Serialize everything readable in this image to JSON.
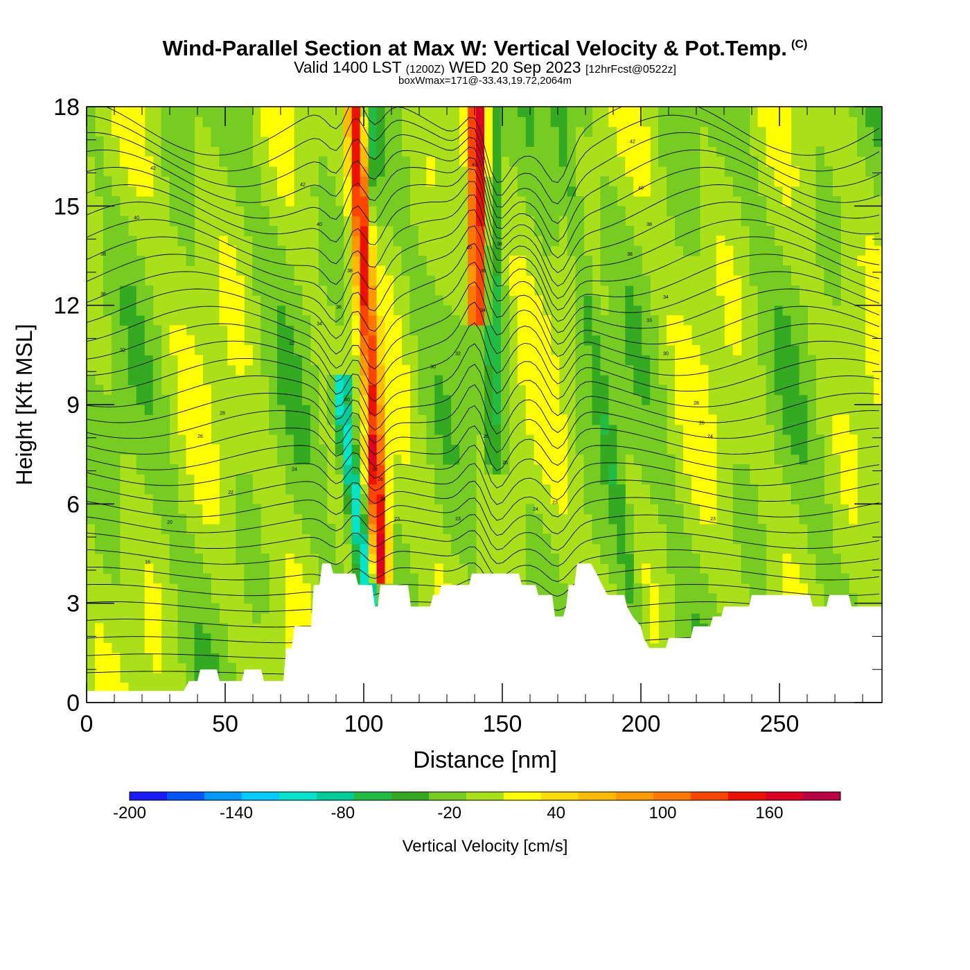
{
  "header": {
    "title_main": "Wind-Parallel Section at Max W: Vertical Velocity & Pot.Temp.",
    "title_copyright": "(C)",
    "valid_prefix": "Valid 1400 LST",
    "valid_utc": "(1200Z)",
    "valid_date": "WED 20 Sep 2023",
    "forecast_info": "[12hrFcst@0522z]",
    "box_wmax": "boxWmax=171@-33.43,19.72,2064m"
  },
  "colorbar": {
    "title": "Vertical Velocity [cm/s]",
    "tick_labels": [
      "-200",
      "-140",
      "-80",
      "-20",
      "40",
      "100",
      "160"
    ],
    "bin_edges": [
      -200,
      -180,
      -160,
      -140,
      -120,
      -100,
      -80,
      -60,
      -40,
      -20,
      0,
      20,
      40,
      60,
      80,
      100,
      120,
      140,
      160,
      180
    ],
    "colors": [
      "#1a1aff",
      "#0055ff",
      "#0099ff",
      "#00ccff",
      "#00e5cc",
      "#00cc99",
      "#22bb44",
      "#33aa22",
      "#77cc22",
      "#aae01a",
      "#ffff00",
      "#ffdd00",
      "#ffbb00",
      "#ff9900",
      "#ff7700",
      "#ff4400",
      "#ee1100",
      "#dd0022",
      "#bb0044"
    ]
  },
  "chart_data": {
    "type": "heatmap",
    "xlabel": "Distance [nm]",
    "ylabel": "Height [Kft MSL]",
    "xlim": [
      0,
      287
    ],
    "ylim": [
      0,
      18
    ],
    "x_ticks": [
      0,
      50,
      100,
      150,
      200,
      250
    ],
    "y_ticks": [
      0,
      3,
      6,
      9,
      12,
      15,
      18
    ],
    "background_value": -15,
    "features": [
      {
        "kind": "updraft",
        "x_top": 97,
        "x_bottom": 106,
        "y_low": 4.5,
        "y_high": 18,
        "value": 150
      },
      {
        "kind": "updraft",
        "x_top": 141,
        "x_bottom": 141,
        "y_low": 12.5,
        "y_high": 18,
        "value": 150
      },
      {
        "kind": "downdraft",
        "x_top": 92,
        "x_bottom": 102,
        "y_low": 3,
        "y_high": 9,
        "value": -130
      },
      {
        "kind": "downdraft",
        "x_top": 102,
        "x_bottom": 102,
        "y_low": 9,
        "y_high": 18,
        "value": -60
      },
      {
        "kind": "downdraft",
        "x_top": 170,
        "x_bottom": 198,
        "y_low": 2.5,
        "y_high": 18,
        "value": -50
      },
      {
        "kind": "downdraft",
        "x_top": 147,
        "x_bottom": 147,
        "y_low": 8,
        "y_high": 18,
        "value": -60
      }
    ],
    "contour_labels": [
      {
        "x": 24,
        "y": 16.1,
        "text": "42"
      },
      {
        "x": 78,
        "y": 15.6,
        "text": "42"
      },
      {
        "x": 18,
        "y": 14.6,
        "text": "40"
      },
      {
        "x": 84,
        "y": 14.4,
        "text": "40"
      },
      {
        "x": 6,
        "y": 13.5,
        "text": "38"
      },
      {
        "x": 6,
        "y": 12.3,
        "text": "36"
      },
      {
        "x": 13,
        "y": 10.6,
        "text": "32"
      },
      {
        "x": 74,
        "y": 10.8,
        "text": "32"
      },
      {
        "x": 49,
        "y": 8.7,
        "text": "28"
      },
      {
        "x": 41,
        "y": 8.0,
        "text": "26"
      },
      {
        "x": 75,
        "y": 7.0,
        "text": "24"
      },
      {
        "x": 52,
        "y": 6.3,
        "text": "22"
      },
      {
        "x": 30,
        "y": 5.4,
        "text": "20"
      },
      {
        "x": 22,
        "y": 4.2,
        "text": "16"
      },
      {
        "x": 95,
        "y": 13.0,
        "text": "38"
      },
      {
        "x": 91,
        "y": 11.9,
        "text": "36"
      },
      {
        "x": 84,
        "y": 11.4,
        "text": "34"
      },
      {
        "x": 94,
        "y": 9.1,
        "text": "30"
      },
      {
        "x": 104,
        "y": 7.0,
        "text": "28"
      },
      {
        "x": 106,
        "y": 6.7,
        "text": "26"
      },
      {
        "x": 107,
        "y": 6.1,
        "text": "24"
      },
      {
        "x": 112,
        "y": 5.5,
        "text": "23"
      },
      {
        "x": 134,
        "y": 5.5,
        "text": "23"
      },
      {
        "x": 125,
        "y": 10.1,
        "text": "30"
      },
      {
        "x": 134,
        "y": 10.5,
        "text": "32"
      },
      {
        "x": 140,
        "y": 16.2,
        "text": "42"
      },
      {
        "x": 138,
        "y": 13.7,
        "text": "40"
      },
      {
        "x": 149,
        "y": 13.8,
        "text": "38"
      },
      {
        "x": 143,
        "y": 13.0,
        "text": "36"
      },
      {
        "x": 143,
        "y": 11.8,
        "text": "34"
      },
      {
        "x": 144,
        "y": 8.0,
        "text": "26"
      },
      {
        "x": 151,
        "y": 7.2,
        "text": "25"
      },
      {
        "x": 162,
        "y": 5.8,
        "text": "24"
      },
      {
        "x": 169,
        "y": 6.0,
        "text": "23"
      },
      {
        "x": 197,
        "y": 16.9,
        "text": "42"
      },
      {
        "x": 200,
        "y": 15.5,
        "text": "40"
      },
      {
        "x": 203,
        "y": 14.4,
        "text": "38"
      },
      {
        "x": 196,
        "y": 13.5,
        "text": "38"
      },
      {
        "x": 209,
        "y": 12.2,
        "text": "34"
      },
      {
        "x": 203,
        "y": 11.5,
        "text": "33"
      },
      {
        "x": 209,
        "y": 10.5,
        "text": "30"
      },
      {
        "x": 220,
        "y": 9.0,
        "text": "28"
      },
      {
        "x": 222,
        "y": 8.4,
        "text": "26"
      },
      {
        "x": 225,
        "y": 8.0,
        "text": "24"
      },
      {
        "x": 226,
        "y": 5.5,
        "text": "23"
      }
    ],
    "terrain_kft": [
      [
        0,
        0.35
      ],
      [
        35,
        0.35
      ],
      [
        37,
        0.65
      ],
      [
        40,
        0.65
      ],
      [
        41,
        1.0
      ],
      [
        47,
        1.0
      ],
      [
        48,
        0.65
      ],
      [
        56,
        0.65
      ],
      [
        57,
        1.0
      ],
      [
        63,
        1.0
      ],
      [
        64,
        0.65
      ],
      [
        71,
        0.65
      ],
      [
        72,
        1.65
      ],
      [
        74,
        1.65
      ],
      [
        75,
        2.3
      ],
      [
        81,
        2.3
      ],
      [
        82,
        3.55
      ],
      [
        84,
        3.55
      ],
      [
        85,
        4.2
      ],
      [
        88,
        4.2
      ],
      [
        89,
        3.9
      ],
      [
        97,
        3.9
      ],
      [
        98,
        3.55
      ],
      [
        103,
        3.55
      ],
      [
        104,
        2.9
      ],
      [
        105,
        2.9
      ],
      [
        106,
        3.55
      ],
      [
        116,
        3.55
      ],
      [
        117,
        2.9
      ],
      [
        124,
        2.9
      ],
      [
        125,
        3.25
      ],
      [
        127,
        3.25
      ],
      [
        128,
        3.55
      ],
      [
        138,
        3.55
      ],
      [
        139,
        3.9
      ],
      [
        156,
        3.9
      ],
      [
        157,
        3.55
      ],
      [
        162,
        3.55
      ],
      [
        163,
        3.25
      ],
      [
        168,
        3.25
      ],
      [
        169,
        2.6
      ],
      [
        172,
        2.6
      ],
      [
        173,
        2.9
      ],
      [
        174,
        3.55
      ],
      [
        176,
        3.55
      ],
      [
        177,
        4.2
      ],
      [
        182,
        4.2
      ],
      [
        184,
        3.9
      ],
      [
        186,
        3.55
      ],
      [
        188,
        3.25
      ],
      [
        194,
        3.25
      ],
      [
        195,
        2.9
      ],
      [
        197,
        2.6
      ],
      [
        200,
        2.3
      ],
      [
        201,
        1.95
      ],
      [
        203,
        1.65
      ],
      [
        209,
        1.65
      ],
      [
        210,
        1.95
      ],
      [
        218,
        1.95
      ],
      [
        219,
        2.3
      ],
      [
        225,
        2.3
      ],
      [
        226,
        2.6
      ],
      [
        229,
        2.6
      ],
      [
        230,
        2.9
      ],
      [
        239,
        2.9
      ],
      [
        240,
        3.25
      ],
      [
        261,
        3.25
      ],
      [
        262,
        2.9
      ],
      [
        267,
        2.9
      ],
      [
        268,
        3.25
      ],
      [
        275,
        3.25
      ],
      [
        276,
        2.9
      ],
      [
        287,
        2.9
      ]
    ]
  }
}
